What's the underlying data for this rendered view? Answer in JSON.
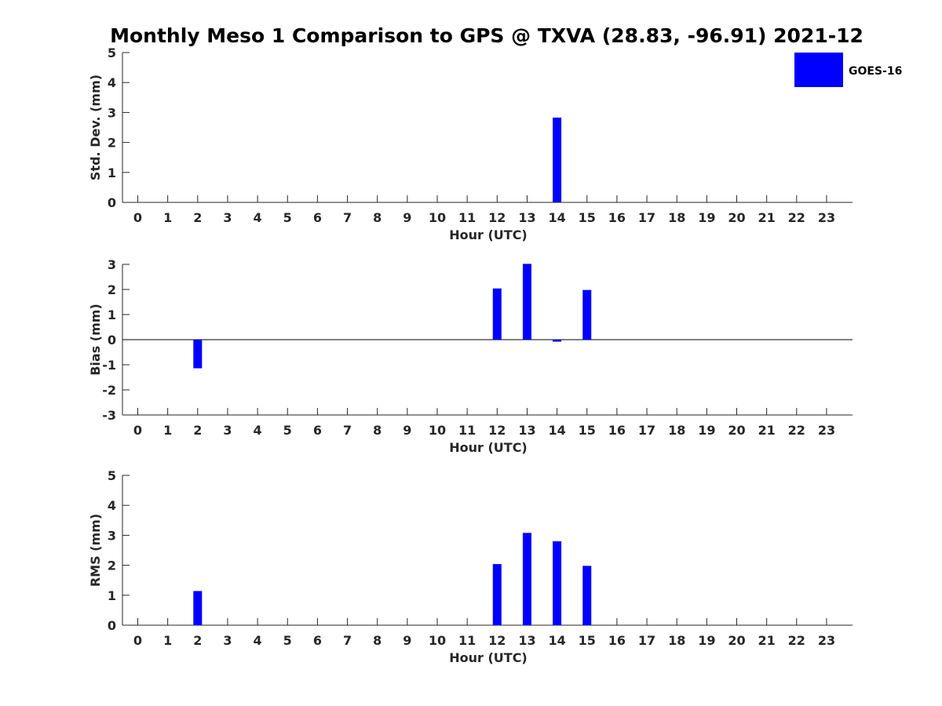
{
  "figure": {
    "title": "Monthly Meso 1 Comparison to GPS @ TXVA (28.83, -96.91) 2021-12",
    "legend": {
      "label": "GOES-16",
      "color": "#0000ff",
      "placement": "top-right"
    }
  },
  "chart_data": [
    {
      "type": "bar",
      "xlabel": "Hour (UTC)",
      "ylabel": "Std. Dev. (mm)",
      "ylim": [
        0,
        5
      ],
      "yticks": [
        0,
        1,
        2,
        3,
        4,
        5
      ],
      "categories": [
        "0",
        "1",
        "2",
        "3",
        "4",
        "5",
        "6",
        "7",
        "8",
        "9",
        "10",
        "11",
        "12",
        "13",
        "14",
        "15",
        "16",
        "17",
        "18",
        "19",
        "20",
        "21",
        "22",
        "23"
      ],
      "series": [
        {
          "name": "GOES-16",
          "values": [
            null,
            null,
            null,
            null,
            null,
            null,
            null,
            null,
            null,
            null,
            null,
            null,
            null,
            null,
            2.83,
            null,
            null,
            null,
            null,
            null,
            null,
            null,
            null,
            null
          ]
        }
      ],
      "color": "#0000ff",
      "grid": false
    },
    {
      "type": "bar",
      "xlabel": "Hour (UTC)",
      "ylabel": "Bias (mm)",
      "ylim": [
        -3,
        3
      ],
      "yticks": [
        -3,
        -2,
        -1,
        0,
        1,
        2,
        3
      ],
      "categories": [
        "0",
        "1",
        "2",
        "3",
        "4",
        "5",
        "6",
        "7",
        "8",
        "9",
        "10",
        "11",
        "12",
        "13",
        "14",
        "15",
        "16",
        "17",
        "18",
        "19",
        "20",
        "21",
        "22",
        "23"
      ],
      "series": [
        {
          "name": "GOES-16",
          "values": [
            null,
            null,
            -1.14,
            null,
            null,
            null,
            null,
            null,
            null,
            null,
            null,
            null,
            2.04,
            3.02,
            -0.08,
            1.98,
            null,
            null,
            null,
            null,
            null,
            null,
            null,
            null
          ]
        }
      ],
      "color": "#0000ff",
      "zero_line": true,
      "grid": false
    },
    {
      "type": "bar",
      "xlabel": "Hour (UTC)",
      "ylabel": "RMS (mm)",
      "ylim": [
        0,
        5
      ],
      "yticks": [
        0,
        1,
        2,
        3,
        4,
        5
      ],
      "categories": [
        "0",
        "1",
        "2",
        "3",
        "4",
        "5",
        "6",
        "7",
        "8",
        "9",
        "10",
        "11",
        "12",
        "13",
        "14",
        "15",
        "16",
        "17",
        "18",
        "19",
        "20",
        "21",
        "22",
        "23"
      ],
      "series": [
        {
          "name": "GOES-16",
          "values": [
            null,
            null,
            1.14,
            null,
            null,
            null,
            null,
            null,
            null,
            null,
            null,
            null,
            2.04,
            3.08,
            2.8,
            1.98,
            null,
            null,
            null,
            null,
            null,
            null,
            null,
            null
          ]
        }
      ],
      "color": "#0000ff",
      "grid": false
    }
  ]
}
